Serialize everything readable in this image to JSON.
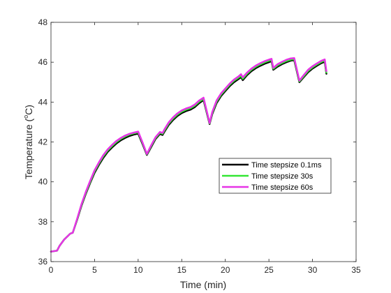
{
  "chart_data": {
    "type": "line",
    "title": "",
    "xlabel": "Time (min)",
    "ylabel_main": "Temperature (",
    "ylabel_sup": "o",
    "ylabel_unit": "C)",
    "xlim": [
      0,
      35
    ],
    "ylim": [
      36,
      48
    ],
    "xticks": [
      0,
      5,
      10,
      15,
      20,
      25,
      30,
      35
    ],
    "yticks": [
      36,
      38,
      40,
      42,
      44,
      46,
      48
    ],
    "grid": false,
    "legend_position": "lower-right",
    "series": [
      {
        "name": "Time stepsize 0.1ms",
        "color": "#000000",
        "x": [
          0,
          0.7,
          1.0,
          1.5,
          2.2,
          2.5,
          3.0,
          3.5,
          4.0,
          4.5,
          5.0,
          5.5,
          6.0,
          6.5,
          7.0,
          7.5,
          8.0,
          8.5,
          9.0,
          9.5,
          10.0,
          10.5,
          11.0,
          11.5,
          12.0,
          12.5,
          12.8,
          13.0,
          13.5,
          14.0,
          14.5,
          15.0,
          15.5,
          16.0,
          16.5,
          17.0,
          17.5,
          18.2,
          18.5,
          19.0,
          19.5,
          20.0,
          20.5,
          21.0,
          21.5,
          21.8,
          22.0,
          22.5,
          23.0,
          23.5,
          24.0,
          24.5,
          25.0,
          25.3,
          25.5,
          26.0,
          26.5,
          27.0,
          27.5,
          27.9,
          28.5,
          29.0,
          29.5,
          30.0,
          30.5,
          31.0,
          31.4,
          31.6
        ],
        "y": [
          36.5,
          36.55,
          36.8,
          37.1,
          37.4,
          37.45,
          38.1,
          38.8,
          39.4,
          39.95,
          40.45,
          40.85,
          41.2,
          41.5,
          41.72,
          41.92,
          42.08,
          42.2,
          42.3,
          42.37,
          42.42,
          41.9,
          41.35,
          41.75,
          42.15,
          42.4,
          42.35,
          42.5,
          42.85,
          43.1,
          43.3,
          43.45,
          43.55,
          43.62,
          43.75,
          43.95,
          44.1,
          42.9,
          43.4,
          43.95,
          44.3,
          44.55,
          44.8,
          45.0,
          45.15,
          45.25,
          45.1,
          45.35,
          45.55,
          45.7,
          45.82,
          45.92,
          46.0,
          46.05,
          45.62,
          45.78,
          45.9,
          46.0,
          46.08,
          46.1,
          45.0,
          45.25,
          45.5,
          45.68,
          45.82,
          45.95,
          46.02,
          45.42
        ]
      },
      {
        "name": "Time stepsize 30s",
        "color": "#33e633",
        "x": [
          0,
          0.7,
          1.0,
          1.5,
          2.2,
          2.5,
          3.0,
          3.5,
          4.0,
          4.5,
          5.0,
          5.5,
          6.0,
          6.5,
          7.0,
          7.5,
          8.0,
          8.5,
          9.0,
          9.5,
          10.0,
          10.5,
          11.0,
          11.5,
          12.0,
          12.5,
          12.8,
          13.0,
          13.5,
          14.0,
          14.5,
          15.0,
          15.5,
          16.0,
          16.5,
          17.0,
          17.5,
          18.2,
          18.5,
          19.0,
          19.5,
          20.0,
          20.5,
          21.0,
          21.5,
          21.8,
          22.0,
          22.5,
          23.0,
          23.5,
          24.0,
          24.5,
          25.0,
          25.3,
          25.5,
          26.0,
          26.5,
          27.0,
          27.5,
          27.9,
          28.5,
          29.0,
          29.5,
          30.0,
          30.5,
          31.0,
          31.4,
          31.6
        ],
        "y": [
          36.5,
          36.55,
          36.8,
          37.1,
          37.4,
          37.45,
          38.12,
          38.84,
          39.45,
          40.0,
          40.52,
          40.92,
          41.28,
          41.57,
          41.79,
          41.99,
          42.15,
          42.27,
          42.37,
          42.43,
          42.48,
          41.95,
          41.38,
          41.8,
          42.2,
          42.46,
          42.41,
          42.56,
          42.92,
          43.17,
          43.37,
          43.52,
          43.62,
          43.69,
          43.82,
          44.02,
          44.16,
          42.93,
          43.45,
          44.02,
          44.37,
          44.62,
          44.87,
          45.07,
          45.22,
          45.32,
          45.17,
          45.42,
          45.62,
          45.77,
          45.89,
          45.99,
          46.07,
          46.11,
          45.67,
          45.84,
          45.96,
          46.06,
          46.13,
          46.15,
          45.04,
          45.3,
          45.56,
          45.74,
          45.88,
          46.01,
          46.08,
          45.48
        ]
      },
      {
        "name": "Time stepsize 60s",
        "color": "#e633e6",
        "x": [
          0,
          0.7,
          1.0,
          1.5,
          2.2,
          2.5,
          3.0,
          3.5,
          4.0,
          4.5,
          5.0,
          5.5,
          6.0,
          6.5,
          7.0,
          7.5,
          8.0,
          8.5,
          9.0,
          9.5,
          10.0,
          10.5,
          11.0,
          11.5,
          12.0,
          12.5,
          12.8,
          13.0,
          13.5,
          14.0,
          14.5,
          15.0,
          15.5,
          16.0,
          16.5,
          17.0,
          17.5,
          18.2,
          18.5,
          19.0,
          19.5,
          20.0,
          20.5,
          21.0,
          21.5,
          21.8,
          22.0,
          22.5,
          23.0,
          23.5,
          24.0,
          24.5,
          25.0,
          25.3,
          25.5,
          26.0,
          26.5,
          27.0,
          27.5,
          27.9,
          28.5,
          29.0,
          29.5,
          30.0,
          30.5,
          31.0,
          31.4,
          31.6
        ],
        "y": [
          36.5,
          36.55,
          36.8,
          37.1,
          37.4,
          37.45,
          38.15,
          38.88,
          39.5,
          40.06,
          40.58,
          40.98,
          41.34,
          41.63,
          41.85,
          42.05,
          42.2,
          42.32,
          42.41,
          42.47,
          42.52,
          41.98,
          41.4,
          41.84,
          42.24,
          42.5,
          42.45,
          42.62,
          42.98,
          43.23,
          43.43,
          43.58,
          43.68,
          43.75,
          43.88,
          44.08,
          44.22,
          42.95,
          43.5,
          44.08,
          44.43,
          44.68,
          44.93,
          45.13,
          45.28,
          45.4,
          45.24,
          45.48,
          45.68,
          45.83,
          45.95,
          46.05,
          46.13,
          46.17,
          45.72,
          45.9,
          46.02,
          46.12,
          46.19,
          46.21,
          45.08,
          45.36,
          45.62,
          45.8,
          45.94,
          46.07,
          46.14,
          45.55
        ]
      }
    ]
  }
}
